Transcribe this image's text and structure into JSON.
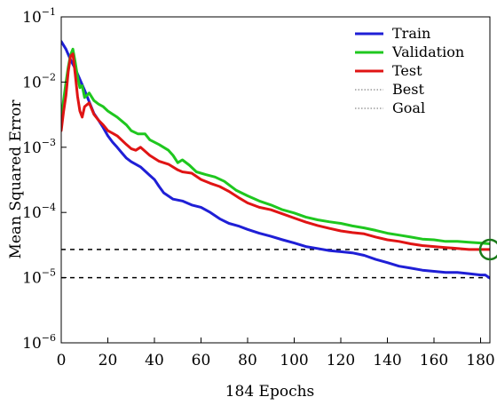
{
  "chart_data": {
    "type": "line",
    "title": "",
    "xlabel": "184 Epochs",
    "ylabel": "Mean Squared Error",
    "yscale": "log",
    "xlim": [
      0,
      184
    ],
    "ylim": [
      1e-06,
      0.1
    ],
    "grid": false,
    "legend_position": "top-right",
    "x_ticks": [
      {
        "value": 0,
        "label": "0"
      },
      {
        "value": 20,
        "label": "20"
      },
      {
        "value": 40,
        "label": "40"
      },
      {
        "value": 60,
        "label": "60"
      },
      {
        "value": 80,
        "label": "80"
      },
      {
        "value": 100,
        "label": "100"
      },
      {
        "value": 120,
        "label": "120"
      },
      {
        "value": 140,
        "label": "140"
      },
      {
        "value": 160,
        "label": "160"
      },
      {
        "value": 180,
        "label": "180"
      }
    ],
    "y_ticks": [
      {
        "exp": -6,
        "base": "10",
        "sup": "−6"
      },
      {
        "exp": -5,
        "base": "10",
        "sup": "−5"
      },
      {
        "exp": -4,
        "base": "10",
        "sup": "−4"
      },
      {
        "exp": -3,
        "base": "10",
        "sup": "−3"
      },
      {
        "exp": -2,
        "base": "10",
        "sup": "−2"
      },
      {
        "exp": -1,
        "base": "10",
        "sup": "−1"
      }
    ],
    "series": [
      {
        "name": "Train",
        "color": "#1f1fd6",
        "style": "solid",
        "points": [
          [
            0,
            0.042
          ],
          [
            2,
            0.032
          ],
          [
            4,
            0.022
          ],
          [
            6,
            0.016
          ],
          [
            8,
            0.011
          ],
          [
            10,
            0.0075
          ],
          [
            12,
            0.005
          ],
          [
            14,
            0.0033
          ],
          [
            16,
            0.0026
          ],
          [
            18,
            0.002
          ],
          [
            20,
            0.0015
          ],
          [
            22,
            0.0012
          ],
          [
            24,
            0.001
          ],
          [
            26,
            0.00082
          ],
          [
            28,
            0.00068
          ],
          [
            30,
            0.0006
          ],
          [
            34,
            0.0005
          ],
          [
            38,
            0.00037
          ],
          [
            40,
            0.00032
          ],
          [
            42,
            0.00025
          ],
          [
            44,
            0.0002
          ],
          [
            48,
            0.00016
          ],
          [
            52,
            0.00015
          ],
          [
            56,
            0.00013
          ],
          [
            60,
            0.00012
          ],
          [
            64,
            0.0001
          ],
          [
            68,
            8e-05
          ],
          [
            72,
            6.8e-05
          ],
          [
            76,
            6.2e-05
          ],
          [
            80,
            5.5e-05
          ],
          [
            85,
            4.8e-05
          ],
          [
            90,
            4.3e-05
          ],
          [
            95,
            3.8e-05
          ],
          [
            100,
            3.4e-05
          ],
          [
            105,
            3e-05
          ],
          [
            110,
            2.8e-05
          ],
          [
            115,
            2.6e-05
          ],
          [
            120,
            2.5e-05
          ],
          [
            125,
            2.4e-05
          ],
          [
            130,
            2.2e-05
          ],
          [
            135,
            1.9e-05
          ],
          [
            140,
            1.7e-05
          ],
          [
            145,
            1.5e-05
          ],
          [
            150,
            1.4e-05
          ],
          [
            155,
            1.3e-05
          ],
          [
            160,
            1.25e-05
          ],
          [
            165,
            1.2e-05
          ],
          [
            170,
            1.2e-05
          ],
          [
            175,
            1.15e-05
          ],
          [
            180,
            1.1e-05
          ],
          [
            182,
            1.1e-05
          ],
          [
            184,
            9.8e-06
          ]
        ]
      },
      {
        "name": "Validation",
        "color": "#1fc71f",
        "style": "solid",
        "points": [
          [
            0,
            0.0025
          ],
          [
            1,
            0.0052
          ],
          [
            2,
            0.0098
          ],
          [
            3,
            0.017
          ],
          [
            4,
            0.026
          ],
          [
            5,
            0.032
          ],
          [
            6,
            0.02
          ],
          [
            7,
            0.012
          ],
          [
            8,
            0.0082
          ],
          [
            9,
            0.0088
          ],
          [
            10,
            0.0058
          ],
          [
            12,
            0.0068
          ],
          [
            14,
            0.0052
          ],
          [
            16,
            0.0046
          ],
          [
            18,
            0.0042
          ],
          [
            20,
            0.0036
          ],
          [
            24,
            0.0029
          ],
          [
            28,
            0.0022
          ],
          [
            30,
            0.0018
          ],
          [
            33,
            0.0016
          ],
          [
            36,
            0.0016
          ],
          [
            38,
            0.0013
          ],
          [
            42,
            0.0011
          ],
          [
            46,
            0.0009
          ],
          [
            48,
            0.00075
          ],
          [
            50,
            0.00058
          ],
          [
            52,
            0.00064
          ],
          [
            55,
            0.00053
          ],
          [
            58,
            0.00042
          ],
          [
            62,
            0.00038
          ],
          [
            66,
            0.00035
          ],
          [
            70,
            0.0003
          ],
          [
            75,
            0.00022
          ],
          [
            80,
            0.00018
          ],
          [
            85,
            0.00015
          ],
          [
            90,
            0.00013
          ],
          [
            95,
            0.00011
          ],
          [
            100,
            9.8e-05
          ],
          [
            105,
            8.5e-05
          ],
          [
            110,
            7.7e-05
          ],
          [
            115,
            7.2e-05
          ],
          [
            120,
            6.8e-05
          ],
          [
            125,
            6.2e-05
          ],
          [
            130,
            5.8e-05
          ],
          [
            135,
            5.3e-05
          ],
          [
            140,
            4.8e-05
          ],
          [
            145,
            4.5e-05
          ],
          [
            150,
            4.2e-05
          ],
          [
            155,
            3.9e-05
          ],
          [
            160,
            3.8e-05
          ],
          [
            165,
            3.6e-05
          ],
          [
            170,
            3.6e-05
          ],
          [
            175,
            3.5e-05
          ],
          [
            180,
            3.4e-05
          ],
          [
            184,
            3.3e-05
          ]
        ]
      },
      {
        "name": "Test",
        "color": "#e01414",
        "style": "solid",
        "points": [
          [
            0,
            0.0018
          ],
          [
            1,
            0.0035
          ],
          [
            2,
            0.0062
          ],
          [
            3,
            0.0145
          ],
          [
            4,
            0.025
          ],
          [
            5,
            0.027
          ],
          [
            6,
            0.013
          ],
          [
            7,
            0.006
          ],
          [
            8,
            0.0036
          ],
          [
            9,
            0.0029
          ],
          [
            10,
            0.0042
          ],
          [
            12,
            0.0048
          ],
          [
            14,
            0.0032
          ],
          [
            16,
            0.0026
          ],
          [
            18,
            0.0022
          ],
          [
            20,
            0.0018
          ],
          [
            24,
            0.0015
          ],
          [
            28,
            0.0011
          ],
          [
            30,
            0.00095
          ],
          [
            32,
            0.0009
          ],
          [
            34,
            0.001
          ],
          [
            38,
            0.00075
          ],
          [
            42,
            0.00061
          ],
          [
            46,
            0.00055
          ],
          [
            50,
            0.00045
          ],
          [
            52,
            0.00042
          ],
          [
            56,
            0.0004
          ],
          [
            60,
            0.00032
          ],
          [
            64,
            0.00028
          ],
          [
            68,
            0.00025
          ],
          [
            72,
            0.00021
          ],
          [
            76,
            0.00017
          ],
          [
            80,
            0.00014
          ],
          [
            85,
            0.00012
          ],
          [
            90,
            0.00011
          ],
          [
            95,
            9.5e-05
          ],
          [
            100,
            8.2e-05
          ],
          [
            105,
            7.1e-05
          ],
          [
            110,
            6.3e-05
          ],
          [
            115,
            5.7e-05
          ],
          [
            120,
            5.2e-05
          ],
          [
            125,
            4.9e-05
          ],
          [
            130,
            4.7e-05
          ],
          [
            135,
            4.2e-05
          ],
          [
            140,
            3.8e-05
          ],
          [
            145,
            3.6e-05
          ],
          [
            150,
            3.3e-05
          ],
          [
            155,
            3.1e-05
          ],
          [
            160,
            3e-05
          ],
          [
            165,
            2.9e-05
          ],
          [
            170,
            2.8e-05
          ],
          [
            175,
            2.7e-05
          ],
          [
            180,
            2.7e-05
          ],
          [
            184,
            2.7e-05
          ]
        ]
      },
      {
        "name": "Best",
        "color": "#000000",
        "style": "dotted",
        "points": [
          [
            0,
            2.7e-05
          ],
          [
            184,
            2.7e-05
          ]
        ]
      },
      {
        "name": "Goal",
        "color": "#000000",
        "style": "dotted",
        "points": [
          [
            0,
            1e-05
          ],
          [
            184,
            1e-05
          ]
        ]
      }
    ],
    "best_marker": {
      "x": 184,
      "y": 2.7e-05,
      "color": "#1a7a1a"
    }
  }
}
